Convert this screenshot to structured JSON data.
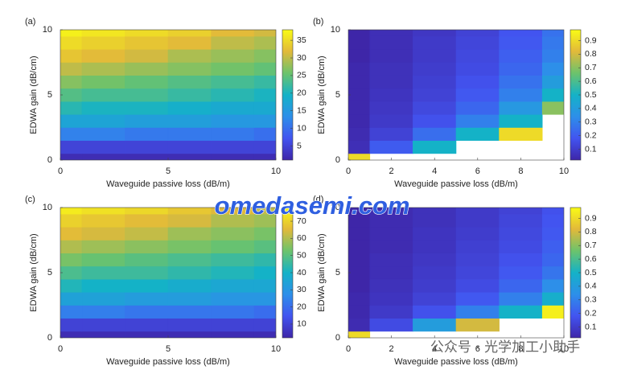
{
  "chart_data": [
    {
      "type": "heatmap",
      "panel_label": "(a)",
      "xlabel": "Waveguide passive loss (dB/m)",
      "ylabel": "EDWA gain (dB/cm)",
      "x": [
        0,
        2,
        4,
        6,
        8,
        10
      ],
      "y": [
        0,
        1,
        2,
        3,
        4,
        5,
        6,
        7,
        8,
        9,
        10
      ],
      "z": [
        [
          2,
          2,
          2,
          2,
          2,
          2
        ],
        [
          5,
          5,
          5,
          5,
          5,
          5
        ],
        [
          12,
          12,
          11,
          11,
          11,
          10
        ],
        [
          17,
          17,
          16,
          16,
          15,
          15
        ],
        [
          21,
          20,
          20,
          19,
          18,
          18
        ],
        [
          24,
          23,
          23,
          22,
          21,
          20
        ],
        [
          27,
          26,
          25,
          24,
          23,
          22
        ],
        [
          30,
          29,
          28,
          27,
          26,
          25
        ],
        [
          33,
          32,
          31,
          29,
          28,
          27
        ],
        [
          35,
          34,
          33,
          32,
          30,
          29
        ],
        [
          37,
          36,
          35,
          34,
          32,
          31
        ]
      ],
      "xlim": [
        0,
        10
      ],
      "ylim": [
        0,
        10
      ],
      "xticks": [
        0,
        5,
        10
      ],
      "yticks": [
        0,
        5,
        10
      ],
      "zlim": [
        1,
        38
      ],
      "zticks": [
        5,
        10,
        15,
        20,
        25,
        30,
        35
      ],
      "colormap": [
        "#3e26a8",
        "#4254f0",
        "#2d8fe9",
        "#14b2c7",
        "#6cc36c",
        "#e2b93a",
        "#f9fb15"
      ]
    },
    {
      "type": "heatmap",
      "panel_label": "(b)",
      "xlabel": "Waveguide passive loss (dB/m)",
      "ylabel": "EDWA gain (dB/cm)",
      "x": [
        0,
        2,
        4,
        6,
        8,
        10
      ],
      "y": [
        0,
        1,
        2,
        3,
        4,
        5,
        6,
        7,
        8,
        9,
        10
      ],
      "z": [
        [
          0.9,
          null,
          null,
          null,
          null,
          null
        ],
        [
          0.05,
          0.2,
          0.5,
          null,
          null,
          null
        ],
        [
          0.04,
          0.12,
          0.25,
          0.5,
          0.9,
          null
        ],
        [
          0.03,
          0.09,
          0.17,
          0.3,
          0.5,
          null
        ],
        [
          0.03,
          0.08,
          0.14,
          0.23,
          0.38,
          0.7
        ],
        [
          0.03,
          0.07,
          0.12,
          0.19,
          0.3,
          0.5
        ],
        [
          0.03,
          0.06,
          0.11,
          0.17,
          0.26,
          0.4
        ],
        [
          0.03,
          0.06,
          0.1,
          0.15,
          0.23,
          0.34
        ],
        [
          0.02,
          0.05,
          0.09,
          0.14,
          0.21,
          0.3
        ],
        [
          0.02,
          0.05,
          0.09,
          0.13,
          0.19,
          0.28
        ],
        [
          0.02,
          0.05,
          0.08,
          0.12,
          0.18,
          0.26
        ]
      ],
      "xlim": [
        0,
        10
      ],
      "ylim": [
        0,
        10
      ],
      "xticks": [
        0,
        2,
        4,
        6,
        8,
        10
      ],
      "yticks": [
        0,
        5,
        10
      ],
      "zlim": [
        0.02,
        0.98
      ],
      "zticks": [
        0.1,
        0.2,
        0.3,
        0.4,
        0.5,
        0.6,
        0.7,
        0.8,
        0.9
      ],
      "colormap": [
        "#3e26a8",
        "#4254f0",
        "#2d8fe9",
        "#14b2c7",
        "#6cc36c",
        "#e2b93a",
        "#f9fb15"
      ]
    },
    {
      "type": "heatmap",
      "panel_label": "(c)",
      "xlabel": "Waveguide passive loss (dB/m)",
      "ylabel": "EDWA gain (dB/cm)",
      "x": [
        0,
        2,
        4,
        6,
        8,
        10
      ],
      "y": [
        0,
        1,
        2,
        3,
        4,
        5,
        6,
        7,
        8,
        9,
        10
      ],
      "z": [
        [
          4,
          4,
          4,
          4,
          4,
          4
        ],
        [
          10,
          10,
          10,
          10,
          10,
          10
        ],
        [
          24,
          24,
          22,
          22,
          22,
          20
        ],
        [
          34,
          34,
          32,
          32,
          30,
          30
        ],
        [
          42,
          40,
          40,
          38,
          36,
          36
        ],
        [
          48,
          46,
          46,
          44,
          42,
          40
        ],
        [
          54,
          52,
          50,
          48,
          46,
          44
        ],
        [
          60,
          58,
          56,
          54,
          52,
          50
        ],
        [
          66,
          64,
          62,
          58,
          56,
          54
        ],
        [
          70,
          68,
          66,
          64,
          60,
          58
        ],
        [
          75,
          73,
          71,
          68,
          65,
          62
        ]
      ],
      "xlim": [
        0,
        10
      ],
      "ylim": [
        0,
        10
      ],
      "xticks": [
        0,
        5,
        10
      ],
      "yticks": [
        0,
        5,
        10
      ],
      "zlim": [
        2,
        78
      ],
      "zticks": [
        10,
        20,
        30,
        40,
        50,
        60,
        70
      ],
      "colormap": [
        "#3e26a8",
        "#4254f0",
        "#2d8fe9",
        "#14b2c7",
        "#6cc36c",
        "#e2b93a",
        "#f9fb15"
      ]
    },
    {
      "type": "heatmap",
      "panel_label": "(d)",
      "xlabel": "Waveguide passive loss (dB/m)",
      "ylabel": "EDWA gain (dB/cm)",
      "x": [
        0,
        2,
        4,
        6,
        8,
        10
      ],
      "y": [
        0,
        1,
        2,
        3,
        4,
        5,
        6,
        7,
        8,
        9,
        10
      ],
      "z": [
        [
          0.9,
          null,
          null,
          null,
          null,
          null
        ],
        [
          0.04,
          0.15,
          0.4,
          0.8,
          null,
          null
        ],
        [
          0.03,
          0.09,
          0.17,
          0.3,
          0.5,
          0.95
        ],
        [
          0.03,
          0.07,
          0.12,
          0.19,
          0.3,
          0.48
        ],
        [
          0.02,
          0.06,
          0.1,
          0.15,
          0.23,
          0.34
        ],
        [
          0.02,
          0.05,
          0.09,
          0.13,
          0.19,
          0.27
        ],
        [
          0.02,
          0.05,
          0.08,
          0.12,
          0.17,
          0.23
        ],
        [
          0.02,
          0.04,
          0.07,
          0.11,
          0.15,
          0.21
        ],
        [
          0.02,
          0.04,
          0.07,
          0.1,
          0.14,
          0.19
        ],
        [
          0.02,
          0.04,
          0.06,
          0.09,
          0.13,
          0.18
        ],
        [
          0.02,
          0.04,
          0.06,
          0.09,
          0.12,
          0.17
        ]
      ],
      "xlim": [
        0,
        10
      ],
      "ylim": [
        0,
        10
      ],
      "xticks": [
        0,
        2,
        4,
        6,
        8,
        10
      ],
      "yticks": [
        0,
        5,
        10
      ],
      "zlim": [
        0.02,
        0.98
      ],
      "zticks": [
        0.1,
        0.2,
        0.3,
        0.4,
        0.5,
        0.6,
        0.7,
        0.8,
        0.9
      ],
      "colormap": [
        "#3e26a8",
        "#4254f0",
        "#2d8fe9",
        "#14b2c7",
        "#6cc36c",
        "#e2b93a",
        "#f9fb15"
      ]
    }
  ],
  "watermarks": [
    "omedasemi.com",
    "公众号 · 光学加工小助手"
  ]
}
